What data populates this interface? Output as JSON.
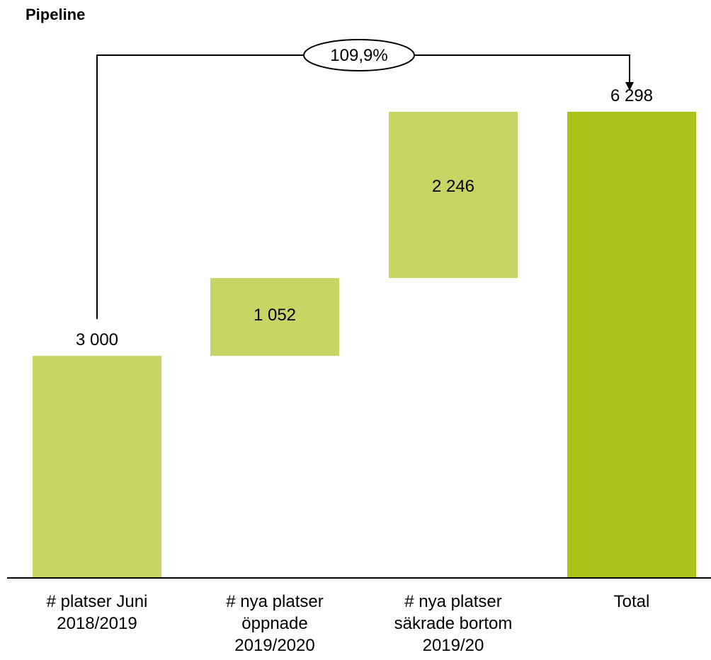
{
  "chart_data": {
    "type": "bar",
    "subtype": "waterfall",
    "title": "Pipeline",
    "categories": [
      [
        "# platser Juni",
        "2018/2019"
      ],
      [
        "# nya platser",
        "öppnade",
        "2019/2020"
      ],
      [
        "# nya platser",
        "säkrade bortom",
        "2019/20"
      ],
      [
        "Total"
      ]
    ],
    "values": [
      3000,
      1052,
      2246,
      6298
    ],
    "bar_kind": [
      "base",
      "increase",
      "increase",
      "total"
    ],
    "value_labels": [
      "3 000",
      "1 052",
      "2 246",
      "6 298"
    ],
    "growth_annotation": "109,9%",
    "ylim": [
      0,
      6298
    ],
    "grid": false,
    "colors": {
      "base": "#c8d564",
      "increase": "#c8d564",
      "total": "#acc21b",
      "connector": "#000000"
    }
  }
}
